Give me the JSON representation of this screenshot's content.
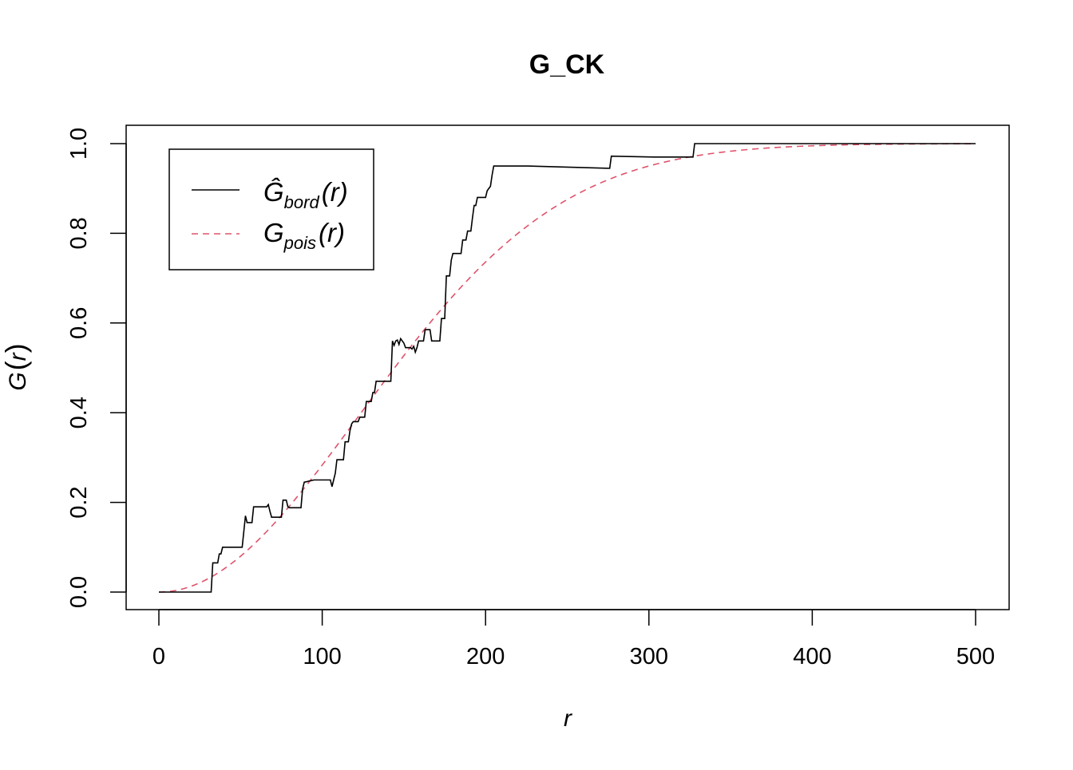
{
  "chart_data": {
    "type": "line",
    "title": "G_CK",
    "xlabel": "r",
    "ylabel_main": "G",
    "ylabel_arg": "r",
    "xlim": [
      0,
      500
    ],
    "ylim": [
      0,
      1
    ],
    "x_ticks": [
      0,
      100,
      200,
      300,
      400,
      500
    ],
    "x_tick_labels": [
      "0",
      "100",
      "200",
      "300",
      "400",
      "500"
    ],
    "y_ticks": [
      0,
      0.2,
      0.4,
      0.6,
      0.8,
      1.0
    ],
    "y_tick_labels": [
      "0.0",
      "0.2",
      "0.4",
      "0.6",
      "0.8",
      "1.0"
    ],
    "grid": false,
    "legend_position": "top-left",
    "colors": {
      "empirical": "#000000",
      "theoretical": "#DF536B"
    },
    "series": [
      {
        "name": "Ĝ_bord(r)",
        "legend_main": "Ĝ",
        "legend_sub": "bord",
        "legend_arg": "r",
        "style": "solid",
        "points": [
          [
            0,
            0
          ],
          [
            32,
            0
          ],
          [
            33,
            0.065
          ],
          [
            36,
            0.065
          ],
          [
            37,
            0.085
          ],
          [
            38,
            0.085
          ],
          [
            39,
            0.1
          ],
          [
            51,
            0.1
          ],
          [
            53,
            0.17
          ],
          [
            54,
            0.155
          ],
          [
            57,
            0.155
          ],
          [
            58,
            0.19
          ],
          [
            66,
            0.19
          ],
          [
            67,
            0.195
          ],
          [
            68,
            0.18
          ],
          [
            69,
            0.167
          ],
          [
            75,
            0.167
          ],
          [
            76,
            0.205
          ],
          [
            78,
            0.205
          ],
          [
            79,
            0.19
          ],
          [
            80,
            0.188
          ],
          [
            87,
            0.188
          ],
          [
            88,
            0.23
          ],
          [
            89,
            0.245
          ],
          [
            95,
            0.25
          ],
          [
            105,
            0.25
          ],
          [
            106,
            0.235
          ],
          [
            107,
            0.25
          ],
          [
            108,
            0.265
          ],
          [
            109,
            0.295
          ],
          [
            113,
            0.295
          ],
          [
            114,
            0.335
          ],
          [
            116,
            0.335
          ],
          [
            117,
            0.36
          ],
          [
            118,
            0.375
          ],
          [
            119,
            0.38
          ],
          [
            122,
            0.38
          ],
          [
            123,
            0.39
          ],
          [
            126,
            0.39
          ],
          [
            127,
            0.425
          ],
          [
            130,
            0.425
          ],
          [
            131,
            0.445
          ],
          [
            132,
            0.445
          ],
          [
            133,
            0.47
          ],
          [
            142,
            0.47
          ],
          [
            143,
            0.56
          ],
          [
            144,
            0.55
          ],
          [
            145,
            0.56
          ],
          [
            146,
            0.562
          ],
          [
            147,
            0.552
          ],
          [
            148,
            0.565
          ],
          [
            149,
            0.56
          ],
          [
            150,
            0.555
          ],
          [
            151,
            0.545
          ],
          [
            154,
            0.545
          ],
          [
            155,
            0.542
          ],
          [
            156,
            0.548
          ],
          [
            157,
            0.535
          ],
          [
            158,
            0.545
          ],
          [
            159,
            0.56
          ],
          [
            162,
            0.56
          ],
          [
            163,
            0.585
          ],
          [
            166,
            0.585
          ],
          [
            167,
            0.56
          ],
          [
            172,
            0.56
          ],
          [
            173,
            0.61
          ],
          [
            175,
            0.61
          ],
          [
            176,
            0.705
          ],
          [
            178,
            0.705
          ],
          [
            179,
            0.74
          ],
          [
            180,
            0.755
          ],
          [
            185,
            0.755
          ],
          [
            186,
            0.785
          ],
          [
            188,
            0.785
          ],
          [
            189,
            0.805
          ],
          [
            191,
            0.805
          ],
          [
            192,
            0.835
          ],
          [
            193,
            0.862
          ],
          [
            194,
            0.862
          ],
          [
            195,
            0.88
          ],
          [
            200,
            0.88
          ],
          [
            201,
            0.895
          ],
          [
            203,
            0.905
          ],
          [
            204,
            0.93
          ],
          [
            205,
            0.95
          ],
          [
            226,
            0.95
          ],
          [
            276,
            0.945
          ],
          [
            277,
            0.972
          ],
          [
            303,
            0.97
          ],
          [
            327,
            0.97
          ],
          [
            328,
            1.0
          ],
          [
            500,
            1.0
          ]
        ]
      },
      {
        "name": "G_pois(r)",
        "legend_main": "G",
        "legend_sub": "pois",
        "legend_arg": "r",
        "style": "dashed",
        "lambda_pi": 3.33e-05
      }
    ]
  }
}
